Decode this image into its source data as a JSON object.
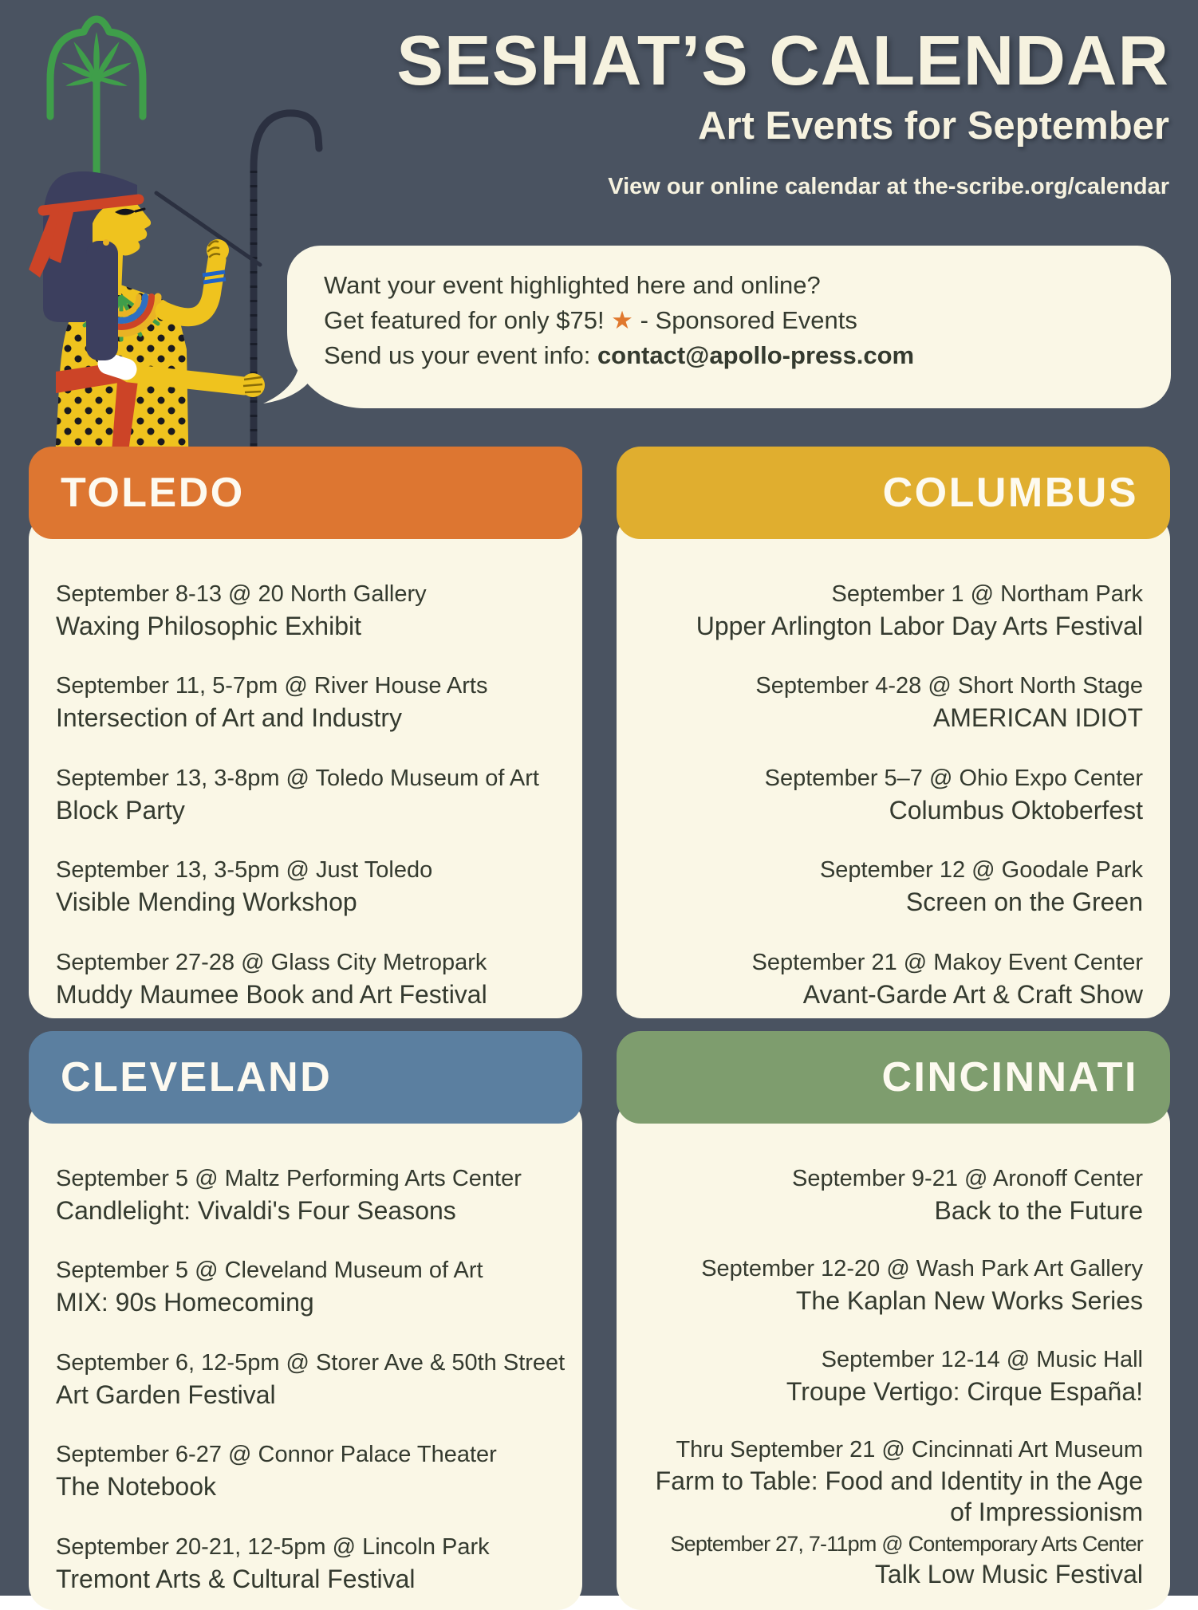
{
  "page": {
    "background": "#4a5361",
    "cream": "#faf7e6",
    "text_dark": "#343a2f",
    "title_cream": "#f6f2df"
  },
  "header": {
    "title": "SESHAT’S CALENDAR",
    "subtitle": "Art Events for September",
    "tagline": "View our online calendar at the-scribe.org/calendar"
  },
  "promo": {
    "line1": "Want your event highlighted here and online?",
    "line2_pre": "Get featured for only $75! ",
    "line2_star": "★",
    "line2_post": " - Sponsored Events",
    "line3_pre": "Send us your event info: ",
    "line3_email": "contact@apollo-press.com",
    "star_color": "#e0782e"
  },
  "sections": [
    {
      "city": "TOLEDO",
      "color": "#dd7631",
      "align": "left",
      "events": [
        {
          "date": "September 8-13 @ 20 North Gallery",
          "title": "Waxing Philosophic Exhibit"
        },
        {
          "date": "September 11, 5-7pm @ River House Arts",
          "title": "Intersection of Art and Industry"
        },
        {
          "date": "September 13, 3-8pm @ Toledo Museum of Art",
          "title": "Block Party"
        },
        {
          "date": "September 13, 3-5pm @ Just Toledo",
          "title": "Visible Mending Workshop"
        },
        {
          "date": "September 27-28 @ Glass City Metropark",
          "title": "Muddy Maumee Book and Art Festival"
        }
      ]
    },
    {
      "city": "COLUMBUS",
      "color": "#e0ae2f",
      "align": "right",
      "events": [
        {
          "date": "September 1 @ Northam Park",
          "title": "Upper Arlington Labor Day Arts Festival"
        },
        {
          "date": "September 4-28 @ Short North Stage",
          "title": "AMERICAN IDIOT"
        },
        {
          "date": "September 5–7 @ Ohio Expo Center",
          "title": "Columbus Oktoberfest"
        },
        {
          "date": "September 12 @ Goodale Park",
          "title": "Screen on the Green"
        },
        {
          "date": "September 21 @ Makoy Event Center",
          "title": "Avant-Garde Art & Craft Show"
        }
      ]
    },
    {
      "city": "CLEVELAND",
      "color": "#5b7fa0",
      "align": "left",
      "events": [
        {
          "date": "September 5 @ Maltz Performing Arts Center",
          "title": "Candlelight: Vivaldi's Four Seasons"
        },
        {
          "date": "September 5 @ Cleveland Museum of Art",
          "title": "MIX: 90s Homecoming"
        },
        {
          "date": "September 6, 12-5pm @ Storer Ave & 50th Street",
          "title": "Art Garden Festival"
        },
        {
          "date": "September 6-27 @ Connor Palace Theater",
          "title": "The Notebook"
        },
        {
          "date": "September 20-21, 12-5pm @ Lincoln Park",
          "title": "Tremont Arts & Cultural Festival"
        }
      ]
    },
    {
      "city": "CINCINNATI",
      "color": "#7e9d6e",
      "align": "right",
      "events": [
        {
          "date": "September 9-21 @ Aronoff Center",
          "title": "Back to the Future"
        },
        {
          "date": "September 12-20 @ Wash Park Art Gallery",
          "title": "The Kaplan New Works Series"
        },
        {
          "date": "September 12-14 @ Music Hall",
          "title": "Troupe Vertigo: Cirque España!"
        },
        {
          "date": "Thru September 21 @ Cincinnati Art Museum",
          "title": "Farm to Table: Food and Identity in the Age of Impressionism"
        },
        {
          "date": "September 27, 7-11pm @ Contemporary Arts Center",
          "title": "Talk Low Music Festival"
        }
      ]
    }
  ],
  "illustration": {
    "skin": "#efc31e",
    "wig": "#3c3f5e",
    "red": "#cc4427",
    "plant": "#3f9e4a",
    "staff": "#2b3040",
    "dot": "#1a1a20",
    "cuff": "#ffffff",
    "bracelet": "#1f63c9",
    "collar_blue": "#2f6fc1",
    "collar_gold": "#e9b324"
  }
}
